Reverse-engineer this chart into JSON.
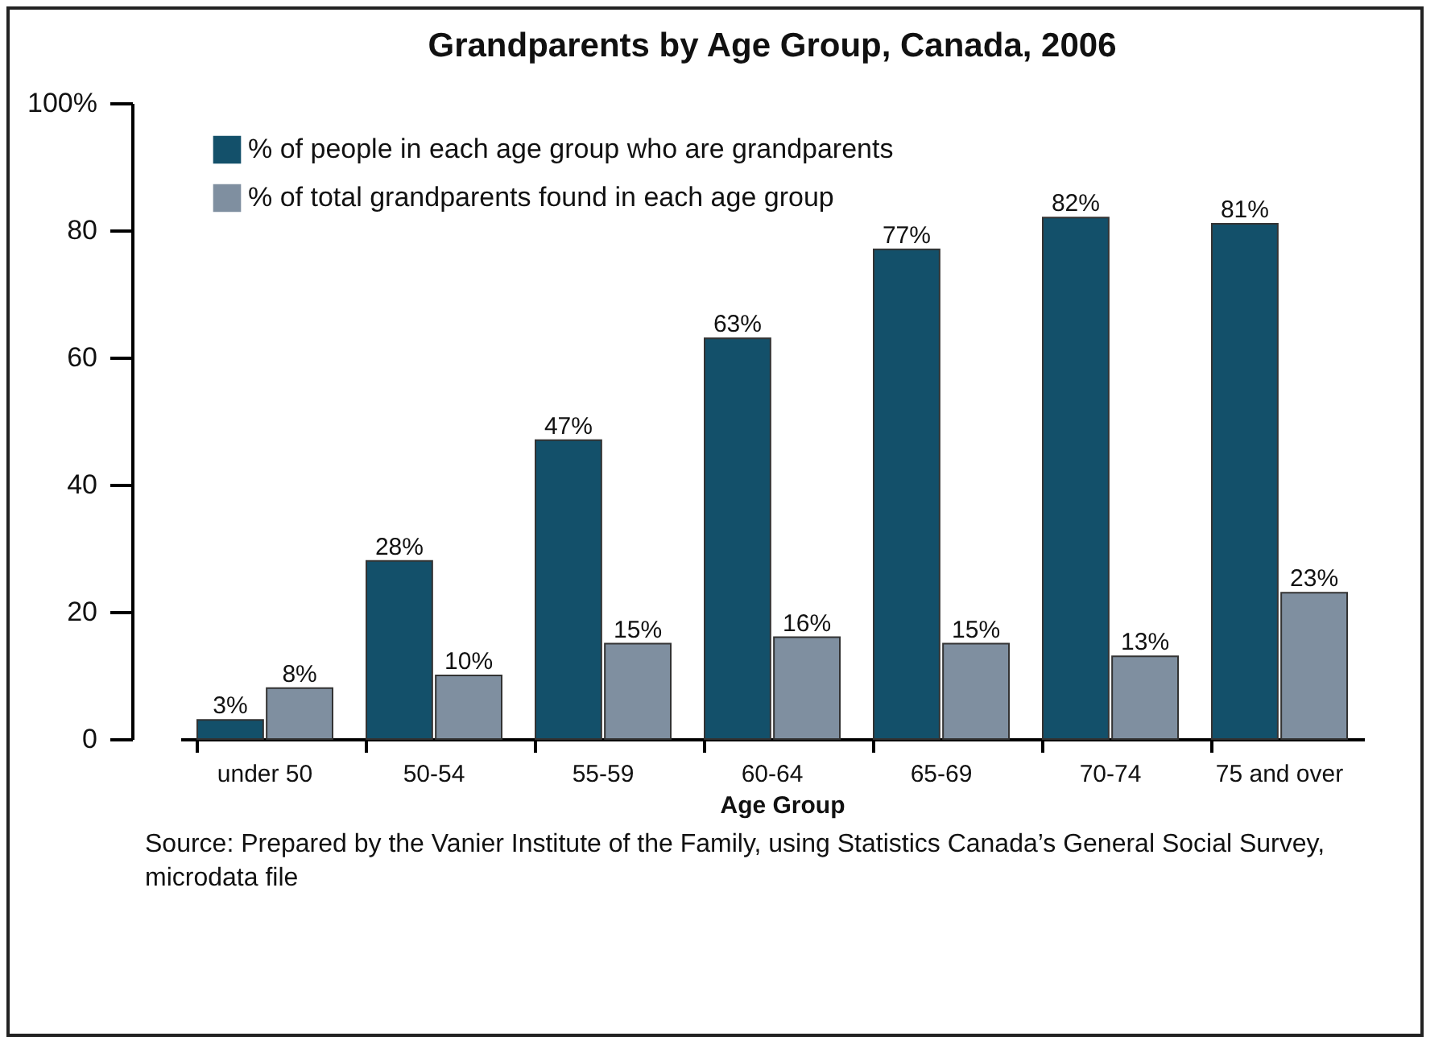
{
  "chart_data": {
    "type": "bar",
    "title": "Grandparents by Age Group, Canada, 2006",
    "xlabel": "Age Group",
    "categories": [
      "under 50",
      "50-54",
      "55-59",
      "60-64",
      "65-69",
      "70-74",
      "75 and over"
    ],
    "series": [
      {
        "name": "% of people in each age group who are grandparents",
        "color": "#13506a",
        "values": [
          3,
          28,
          47,
          63,
          77,
          82,
          81
        ],
        "value_labels": [
          "3%",
          "28%",
          "47%",
          "63%",
          "77%",
          "82%",
          "81%"
        ]
      },
      {
        "name": "% of total grandparents found in each age group",
        "color": "#7f8fa0",
        "values": [
          8,
          10,
          15,
          16,
          15,
          13,
          23
        ],
        "value_labels": [
          "8%",
          "10%",
          "15%",
          "16%",
          "15%",
          "13%",
          "23%"
        ]
      }
    ],
    "ylim": [
      0,
      100
    ],
    "yticks": [
      0,
      20,
      40,
      60,
      80,
      {
        "value": 100,
        "label": "100%"
      }
    ],
    "grid": false,
    "legend": "top left",
    "annotations": [
      "Source: Prepared by the Vanier Institute of the Family, using Statistics Canada’s General Social Survey, microdata file"
    ]
  }
}
